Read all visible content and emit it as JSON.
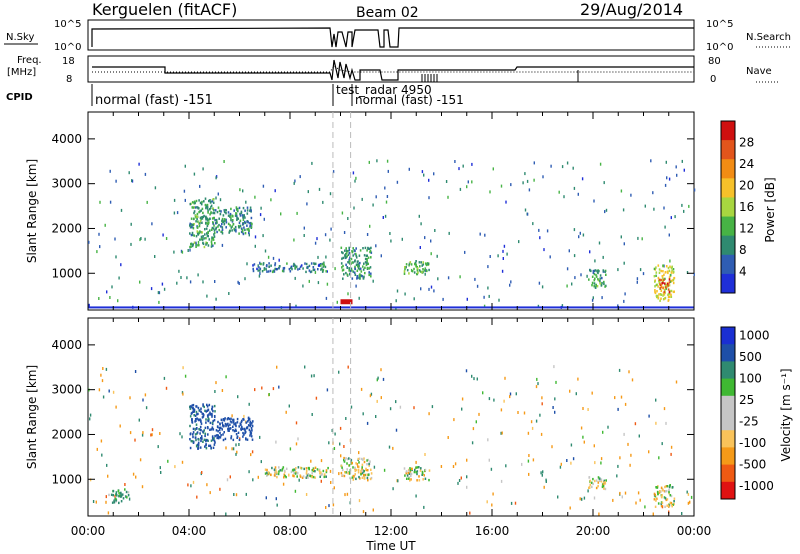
{
  "header": {
    "station": "Kerguelen (fitACF)",
    "beam": "Beam 02",
    "date": "29/Aug/2014"
  },
  "strip_labels": {
    "nsky": "N.Sky",
    "nsky_ticks": [
      "10^5",
      "10^0"
    ],
    "nsearch": "N.Search",
    "nsearch_ticks": [
      "10^5",
      "10^0"
    ],
    "freq": "Freq.",
    "freq_unit": "[MHz]",
    "freq_ticks": [
      "18",
      "8"
    ],
    "nave": "Nave",
    "nave_ticks": [
      "80",
      "0"
    ],
    "cpid": "CPID"
  },
  "cpid_modes": [
    {
      "label": "normal (fast) -151"
    },
    {
      "label": "test_radar 4950"
    },
    {
      "label": "normal (fast) -151"
    }
  ],
  "colors": {
    "power": [
      "#1f2fd8",
      "#2f5db3",
      "#2f8a70",
      "#47b345",
      "#a8d640",
      "#f6c12a",
      "#f28c14",
      "#e2551c",
      "#cf1010"
    ],
    "velocity": [
      "#e01212",
      "#ef5a13",
      "#f59a18",
      "#f9c35a",
      "#c6c6c6",
      "#c6c6c6",
      "#3fb832",
      "#2f8a70",
      "#1e4fa8",
      "#1a2fd2"
    ]
  },
  "chart_data": [
    {
      "type": "heatmap",
      "quantity": "power",
      "xlabel": "Time UT",
      "ylabel": "Slant Range [km]",
      "x_ticks": [
        "00:00",
        "04:00",
        "08:00",
        "12:00",
        "16:00",
        "20:00",
        "00:00"
      ],
      "xlim_hours": [
        0,
        24
      ],
      "y_ticks": [
        "1000",
        "2000",
        "3000",
        "4000"
      ],
      "ylim_km": [
        180,
        4600
      ],
      "colorbar_label": "Power [dB]",
      "colorbar_ticks": [
        "4",
        "8",
        "12",
        "16",
        "20",
        "24",
        "28"
      ],
      "colorbar_range": [
        0,
        30
      ],
      "regions": [
        {
          "t0": 4.0,
          "t1": 5.0,
          "r0": 1600,
          "r1": 2700,
          "value": 10
        },
        {
          "t0": 5.0,
          "t1": 6.5,
          "r0": 1900,
          "r1": 2500,
          "value": 8
        },
        {
          "t0": 6.5,
          "t1": 9.5,
          "r0": 1050,
          "r1": 1250,
          "value": 7
        },
        {
          "t0": 10.0,
          "t1": 11.2,
          "r0": 900,
          "r1": 1600,
          "value": 9
        },
        {
          "t0": 12.5,
          "t1": 13.5,
          "r0": 1000,
          "r1": 1300,
          "value": 12
        },
        {
          "t0": 19.8,
          "t1": 20.5,
          "r0": 700,
          "r1": 1100,
          "value": 10
        },
        {
          "t0": 22.4,
          "t1": 23.2,
          "r0": 400,
          "r1": 1200,
          "value": 16
        },
        {
          "t0": 22.6,
          "t1": 23.0,
          "r0": 600,
          "r1": 900,
          "value": 26
        }
      ]
    },
    {
      "type": "heatmap",
      "quantity": "velocity",
      "xlabel": "Time UT",
      "ylabel": "Slant Range [km]",
      "x_ticks": [
        "00:00",
        "04:00",
        "08:00",
        "12:00",
        "16:00",
        "20:00",
        "00:00"
      ],
      "xlim_hours": [
        0,
        24
      ],
      "y_ticks": [
        "1000",
        "2000",
        "3000",
        "4000"
      ],
      "ylim_km": [
        180,
        4600
      ],
      "colorbar_label": "Velocity [m s⁻¹]",
      "colorbar_ticks": [
        "-1000",
        "-500",
        "-100",
        "-25",
        "25",
        "100",
        "500",
        "1000"
      ],
      "regions": [
        {
          "t0": 4.0,
          "t1": 5.0,
          "r0": 1700,
          "r1": 2700,
          "value": 600
        },
        {
          "t0": 5.0,
          "t1": 6.5,
          "r0": 1900,
          "r1": 2400,
          "value": 700
        },
        {
          "t0": 7.0,
          "t1": 9.5,
          "r0": 1050,
          "r1": 1300,
          "value": 0
        },
        {
          "t0": 10.0,
          "t1": 11.2,
          "r0": 1000,
          "r1": 1500,
          "value": 0
        },
        {
          "t0": 12.5,
          "t1": 13.5,
          "r0": 1000,
          "r1": 1300,
          "value": 0
        },
        {
          "t0": 19.8,
          "t1": 20.5,
          "r0": 800,
          "r1": 1100,
          "value": 0
        },
        {
          "t0": 22.4,
          "t1": 23.2,
          "r0": 400,
          "r1": 900,
          "value": 0
        },
        {
          "t0": 0.8,
          "t1": 1.6,
          "r0": 500,
          "r1": 800,
          "value": 150
        }
      ]
    }
  ]
}
